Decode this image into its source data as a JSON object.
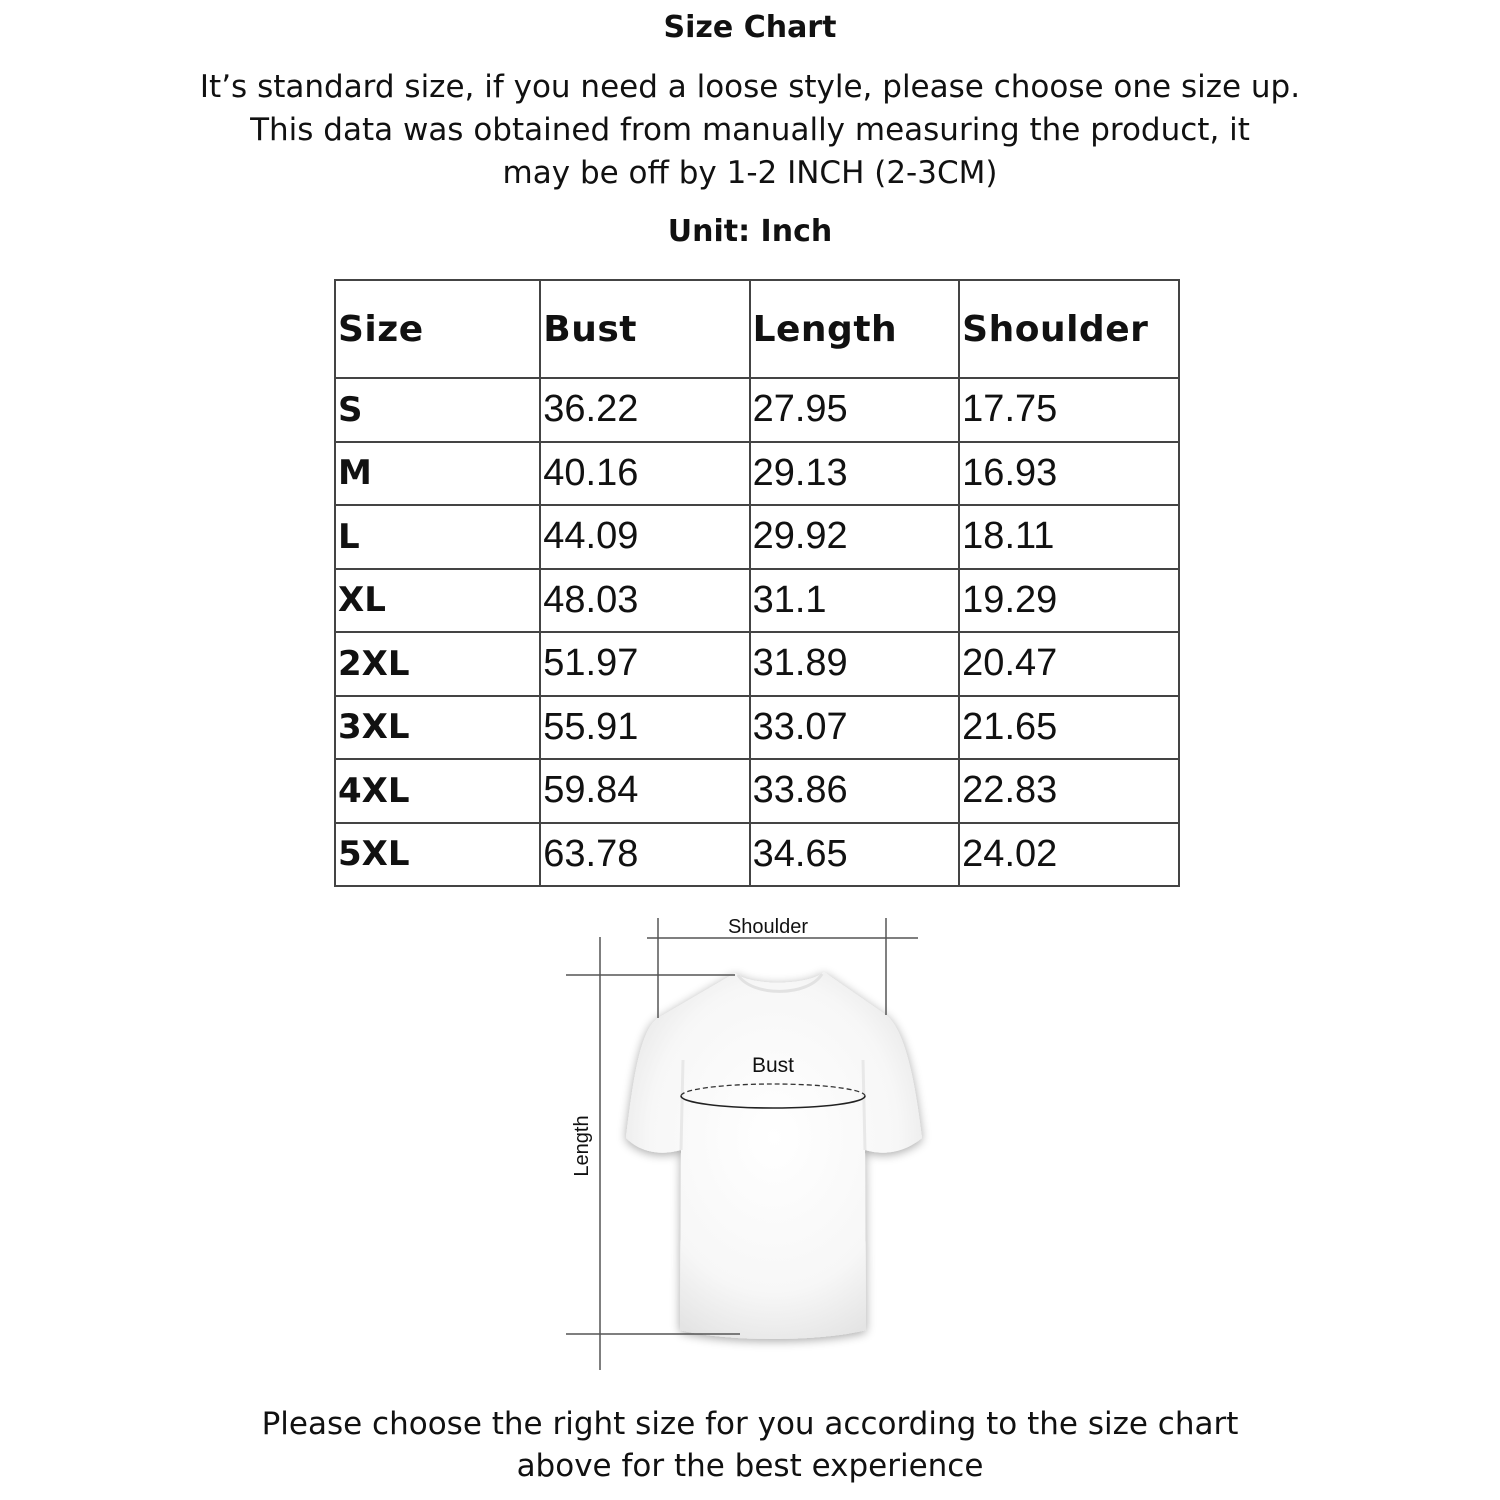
{
  "title": "Size Chart",
  "intro": [
    "It’s standard size, if you need a loose style, please choose one size up.",
    "This data was obtained from manually measuring the product, it",
    "may be off by 1-2 INCH (2-3CM)"
  ],
  "unit": "Unit: Inch",
  "table": {
    "headers": [
      "Size",
      "Bust",
      "Length",
      "Shoulder"
    ],
    "rows": [
      [
        "S",
        "36.22",
        "27.95",
        "17.75"
      ],
      [
        "M",
        "40.16",
        "29.13",
        "16.93"
      ],
      [
        "L",
        "44.09",
        "29.92",
        "18.11"
      ],
      [
        "XL",
        "48.03",
        "31.1",
        "19.29"
      ],
      [
        "2XL",
        "51.97",
        "31.89",
        "20.47"
      ],
      [
        "3XL",
        "55.91",
        "33.07",
        "21.65"
      ],
      [
        "4XL",
        "59.84",
        "33.86",
        "22.83"
      ],
      [
        "5XL",
        "63.78",
        "34.65",
        "24.02"
      ]
    ]
  },
  "diagram": {
    "shoulder_label": "Shoulder",
    "bust_label": "Bust",
    "length_label": "Length"
  },
  "footer": [
    "Please choose the right size for you according to the size chart",
    "above for the best experience"
  ]
}
